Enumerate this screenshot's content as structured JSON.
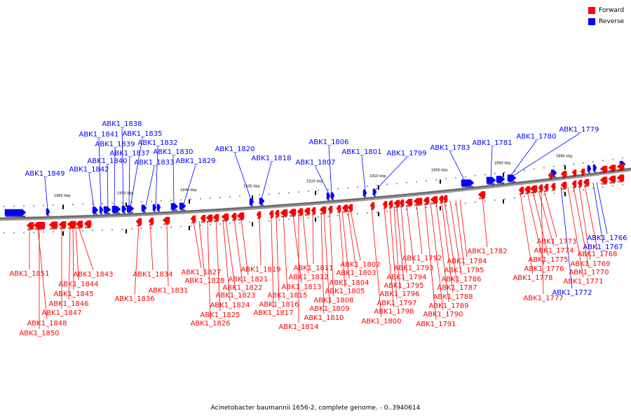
{
  "legend": {
    "forward_label": "Forward",
    "reverse_label": "Reverse",
    "forward_color": "#ff0000",
    "reverse_color": "#0000ff"
  },
  "caption": "Acinetobacter baumannii 1656-2, complete genome. - 0..3940614",
  "scale_labels": [
    "1960 kbp",
    "1950 kbp",
    "1940 kbp",
    "1930 kbp",
    "1920 kbp",
    "1910 kbp",
    "1900 kbp",
    "1890 kbp",
    "1880 kbp"
  ],
  "genes_reverse": [
    "ABK1_1849",
    "ABK1_1842",
    "ABK1_1841",
    "ABK1_1840",
    "ABK1_1839",
    "ABK1_1838",
    "ABK1_1837",
    "ABK1_1835",
    "ABK1_1833",
    "ABK1_1832",
    "ABK1_1830",
    "ABK1_1829",
    "ABK1_1820",
    "ABK1_1818",
    "ABK1_1807",
    "ABK1_1806",
    "ABK1_1801",
    "ABK1_1799",
    "ABK1_1783",
    "ABK1_1781",
    "ABK1_1780",
    "ABK1_1779",
    "ABK1_1766",
    "ABK1_1767",
    "ABK1_1772"
  ],
  "genes_forward": [
    "ABK1_1851",
    "ABK1_1850",
    "ABK1_1848",
    "ABK1_1847",
    "ABK1_1846",
    "ABK1_1845",
    "ABK1_1844",
    "ABK1_1843",
    "ABK1_1836",
    "ABK1_1834",
    "ABK1_1831",
    "ABK1_1827",
    "ABK1_1828",
    "ABK1_1826",
    "ABK1_1825",
    "ABK1_1824",
    "ABK1_1823",
    "ABK1_1822",
    "ABK1_1821",
    "ABK1_1819",
    "ABK1_1817",
    "ABK1_1816",
    "ABK1_1815",
    "ABK1_1814",
    "ABK1_1813",
    "ABK1_1812",
    "ABK1_1811",
    "ABK1_1810",
    "ABK1_1809",
    "ABK1_1808",
    "ABK1_1805",
    "ABK1_1804",
    "ABK1_1803",
    "ABK1_1802",
    "ABK1_1800",
    "ABK1_1798",
    "ABK1_1797",
    "ABK1_1796",
    "ABK1_1795",
    "ABK1_1794",
    "ABK1_1793",
    "ABK1_1792",
    "ABK1_1791",
    "ABK1_1790",
    "ABK1_1789",
    "ABK1_1788",
    "ABK1_1787",
    "ABK1_1786",
    "ABK1_1785",
    "ABK1_1784",
    "ABK1_1782",
    "ABK1_1778",
    "ABK1_1777",
    "ABK1_1776",
    "ABK1_1775",
    "ABK1_1774",
    "ABK1_1773",
    "ABK1_1771",
    "ABK1_1770",
    "ABK1_1769",
    "ABK1_1768"
  ]
}
